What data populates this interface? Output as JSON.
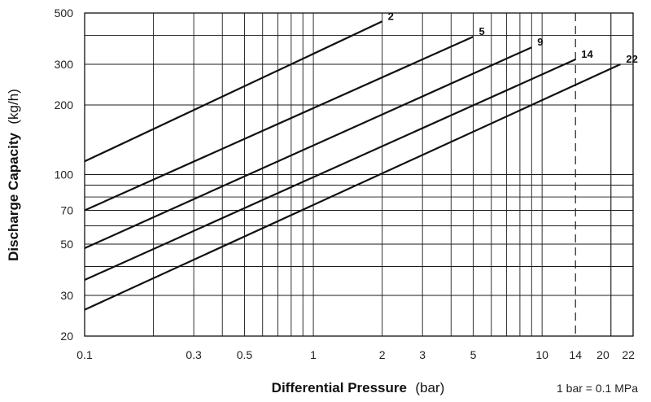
{
  "chart_data": {
    "type": "line",
    "xscale": "log",
    "yscale": "log",
    "xlim": [
      0.1,
      25
    ],
    "ylim": [
      20,
      500
    ],
    "xticks": [
      "0.1",
      "0.3",
      "0.5",
      "1",
      "2",
      "3",
      "5",
      "10",
      "14",
      "20",
      "22"
    ],
    "yticks": [
      "20",
      "30",
      "50",
      "70",
      "100",
      "200",
      "300",
      "500"
    ],
    "xlabel": "Differential Pressure",
    "xlabel_unit": "(bar)",
    "ylabel": "Discharge Capacity",
    "ylabel_unit": "(kg/h)",
    "note": "1 bar = 0.1 MPa",
    "grid": true,
    "dashed_vline_x": 14,
    "series": [
      {
        "name": "2",
        "x": [
          0.1,
          2
        ],
        "y": [
          114,
          460
        ]
      },
      {
        "name": "5",
        "x": [
          0.1,
          5
        ],
        "y": [
          70,
          395
        ]
      },
      {
        "name": "9",
        "x": [
          0.1,
          9
        ],
        "y": [
          48,
          355
        ]
      },
      {
        "name": "14",
        "x": [
          0.1,
          14
        ],
        "y": [
          35,
          315
        ]
      },
      {
        "name": "22",
        "x": [
          0.1,
          22
        ],
        "y": [
          26,
          300
        ]
      }
    ]
  }
}
